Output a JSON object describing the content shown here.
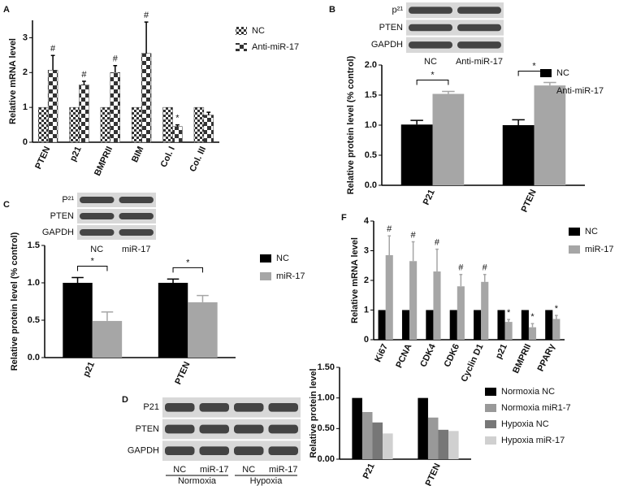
{
  "chart_data": [
    {
      "type": "bar",
      "panel": "A",
      "y_label": "Relative mRNA level",
      "pattern": true,
      "categories": [
        "PTEN",
        "p21",
        "BMPRII",
        "BIM",
        "Col. I",
        "Col. III"
      ],
      "series": [
        {
          "name": "NC",
          "color": "#333333",
          "values": [
            1,
            1,
            1,
            1,
            1,
            1
          ]
        },
        {
          "name": "Anti-miR-17",
          "color": "#333333",
          "values": [
            2.07,
            1.65,
            2.0,
            2.55,
            0.45,
            0.78
          ],
          "errors": [
            0.42,
            0.1,
            0.2,
            0.9,
            0.05,
            0.08
          ],
          "significance": [
            "#",
            "#",
            "#",
            "#",
            "*",
            null
          ]
        }
      ],
      "ylim": [
        0,
        3.5
      ],
      "yticks": [
        0,
        1,
        2,
        3
      ]
    },
    {
      "type": "bar",
      "panel": "B",
      "y_label": "Relative protein level (% control)",
      "categories": [
        "P21",
        "PTEN"
      ],
      "series": [
        {
          "name": "NC",
          "color": "#000000",
          "values": [
            1.01,
            1.0
          ],
          "errors": [
            0.07,
            0.09
          ]
        },
        {
          "name": "Anti-miR-17",
          "color": "#a6a6a6",
          "values": [
            1.52,
            1.66
          ],
          "errors": [
            0.04,
            0.05
          ]
        }
      ],
      "significance": [
        "*",
        "*"
      ],
      "ylim": [
        0,
        2
      ],
      "yticks": [
        {
          "value": 0,
          "label": "0.0"
        },
        0.5,
        {
          "value": 1,
          "label": "1.0"
        },
        1.5,
        {
          "value": 2,
          "label": "2.0"
        }
      ],
      "blot": {
        "rows": [
          "p²¹",
          "PTEN",
          "GAPDH"
        ],
        "lanes": [
          "NC",
          "Anti-miR-17"
        ]
      }
    },
    {
      "type": "bar",
      "panel": "C",
      "y_label": "Relative protein level (% control)",
      "categories": [
        "p21",
        "PTEN"
      ],
      "series": [
        {
          "name": "NC",
          "color": "#000000",
          "values": [
            1.0,
            1.0
          ],
          "errors": [
            0.07,
            0.05
          ]
        },
        {
          "name": "miR-17",
          "color": "#a6a6a6",
          "values": [
            0.49,
            0.74
          ],
          "errors": [
            0.12,
            0.09
          ]
        }
      ],
      "significance": [
        "*",
        "*"
      ],
      "ylim": [
        0,
        1.5
      ],
      "yticks": [
        {
          "value": 0,
          "label": "0.0"
        },
        0.5,
        {
          "value": 1,
          "label": "1.0"
        },
        1.5
      ],
      "blot": {
        "rows": [
          "P²¹",
          "PTEN",
          "GAPDH"
        ],
        "lanes": [
          "NC",
          "miR-17"
        ]
      }
    },
    {
      "type": "bar",
      "panel": "D",
      "y_label": "Relative protein level",
      "categories": [
        "P21",
        "PTEN"
      ],
      "series": [
        {
          "name": "Normoxia NC",
          "color": "#000000",
          "values": [
            1.0,
            1.0
          ]
        },
        {
          "name": "Normoxia miR1-7",
          "color": "#999999",
          "values": [
            0.77,
            0.68
          ]
        },
        {
          "name": "Hypoxia NC",
          "color": "#777777",
          "values": [
            0.6,
            0.48
          ]
        },
        {
          "name": "Hypoxia miR-17",
          "color": "#d0d0d0",
          "values": [
            0.42,
            0.46
          ]
        }
      ],
      "ylim": [
        0,
        1.5
      ],
      "yticks": [
        {
          "value": 0,
          "label": "0.00"
        },
        {
          "value": 0.5,
          "label": "0.50"
        },
        {
          "value": 1,
          "label": "1.00"
        },
        {
          "value": 1.5,
          "label": "1.50"
        }
      ],
      "blot": {
        "rows": [
          "P21",
          "PTEN",
          "GAPDH"
        ],
        "lanes": [
          "NC",
          "miR-17",
          "NC",
          "miR-17"
        ],
        "groups": [
          "Normoxia",
          "Hypoxia"
        ]
      }
    },
    {
      "type": "bar",
      "panel": "F",
      "y_label": "Relative mRNA level",
      "categories": [
        "Ki67",
        "PCNA",
        "CDK4",
        "CDK6",
        "Cyclin D1",
        "p21",
        "BMPRII",
        "PPARγ"
      ],
      "series": [
        {
          "name": "NC",
          "color": "#000000",
          "values": [
            1,
            1,
            1,
            1,
            1,
            1,
            1,
            1
          ]
        },
        {
          "name": "miR-17",
          "color": "#a6a6a6",
          "values": [
            2.85,
            2.65,
            2.3,
            1.8,
            1.95,
            0.6,
            0.42,
            0.7
          ],
          "errors": [
            0.65,
            0.65,
            0.75,
            0.4,
            0.25,
            0.08,
            0.12,
            0.12
          ],
          "significance": [
            "#",
            "#",
            "#",
            "#",
            "#",
            "*",
            "*",
            "*"
          ]
        }
      ],
      "ylim": [
        0,
        4
      ],
      "yticks": [
        0,
        1,
        2,
        3,
        4
      ]
    }
  ]
}
